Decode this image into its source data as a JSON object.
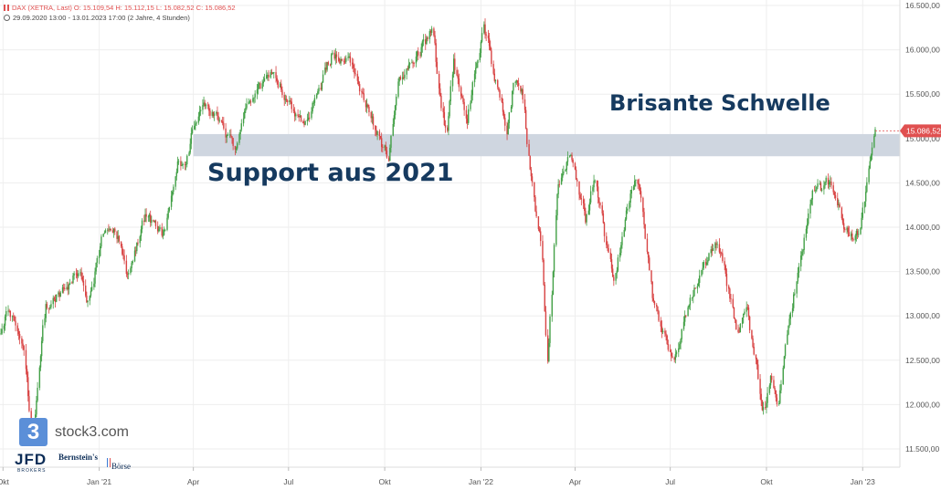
{
  "header": {
    "line1": "DAX (XETRA, Last)  O: 15.109,54  H: 15.112,15  L: 15.082,52  C: 15.086,52",
    "line2": "29.09.2020 13:00 - 13.01.2023 17:00  (2 Jahre, 4 Stunden)"
  },
  "annotations": {
    "support": "Support aus 2021",
    "schwelle": "Brisante Schwelle"
  },
  "logos": {
    "stock3_mark": "3",
    "stock3": "stock3.com",
    "jfd": "JFD",
    "jfd_sub": "BROKERS",
    "bernstein": "Bernstein's",
    "boerse": "Börse"
  },
  "colors": {
    "up": "#43a047",
    "down": "#d84343",
    "band": "#cfd6e0",
    "last_price": "#e05050",
    "annotation": "#163a5f"
  },
  "chart_data": {
    "type": "candlestick",
    "title": "DAX (XETRA, Last)",
    "period": "29.09.2020 13:00 - 13.01.2023 17:00",
    "ohlc_last": {
      "open": 15109.54,
      "high": 15112.15,
      "low": 15082.52,
      "close": 15086.52
    },
    "last_price_label": "15.086,52",
    "y_axis": {
      "side": "right",
      "ylim": [
        11400,
        16550
      ],
      "ticks": [
        11500,
        12000,
        12500,
        13000,
        13500,
        14000,
        14500,
        15000,
        15500,
        16000,
        16500
      ],
      "tick_labels": [
        "11.500,00",
        "12.000,00",
        "12.500,00",
        "13.000,00",
        "13.500,00",
        "14.000,00",
        "14.500,00",
        "15.000,00",
        "15.500,00",
        "16.000,00",
        "16.500,00"
      ]
    },
    "x_axis": {
      "start": "2020-09-29",
      "end": "2023-01-13",
      "ticks": [
        {
          "date": "2020-10-01",
          "label": "Okt"
        },
        {
          "date": "2021-01-01",
          "label": "Jan '21"
        },
        {
          "date": "2021-04-01",
          "label": "Apr"
        },
        {
          "date": "2021-07-01",
          "label": "Jul"
        },
        {
          "date": "2021-10-01",
          "label": "Okt"
        },
        {
          "date": "2022-01-01",
          "label": "Jan '22"
        },
        {
          "date": "2022-04-01",
          "label": "Apr"
        },
        {
          "date": "2022-07-01",
          "label": "Jul"
        },
        {
          "date": "2022-10-01",
          "label": "Okt"
        },
        {
          "date": "2023-01-01",
          "label": "Jan '23"
        }
      ]
    },
    "support_zone": {
      "from": "2021-04-01",
      "low": 14800,
      "high": 15050
    },
    "grid": true,
    "path": [
      {
        "date": "2020-09-29",
        "value": 12800
      },
      {
        "date": "2020-10-08",
        "value": 13100
      },
      {
        "date": "2020-10-15",
        "value": 12900
      },
      {
        "date": "2020-10-22",
        "value": 12700
      },
      {
        "date": "2020-10-28",
        "value": 11900
      },
      {
        "date": "2020-10-30",
        "value": 11550
      },
      {
        "date": "2020-11-06",
        "value": 12450
      },
      {
        "date": "2020-11-12",
        "value": 13100
      },
      {
        "date": "2020-12-01",
        "value": 13300
      },
      {
        "date": "2020-12-15",
        "value": 13500
      },
      {
        "date": "2020-12-21",
        "value": 13100
      },
      {
        "date": "2021-01-08",
        "value": 14000
      },
      {
        "date": "2021-01-20",
        "value": 13900
      },
      {
        "date": "2021-01-29",
        "value": 13450
      },
      {
        "date": "2021-02-15",
        "value": 14100
      },
      {
        "date": "2021-03-05",
        "value": 13900
      },
      {
        "date": "2021-03-18",
        "value": 14700
      },
      {
        "date": "2021-03-25",
        "value": 14600
      },
      {
        "date": "2021-04-01",
        "value": 15100
      },
      {
        "date": "2021-04-16",
        "value": 15400
      },
      {
        "date": "2021-05-12",
        "value": 14850
      },
      {
        "date": "2021-05-20",
        "value": 15300
      },
      {
        "date": "2021-06-15",
        "value": 15750
      },
      {
        "date": "2021-07-08",
        "value": 15300
      },
      {
        "date": "2021-07-19",
        "value": 15200
      },
      {
        "date": "2021-08-13",
        "value": 15950
      },
      {
        "date": "2021-09-03",
        "value": 15800
      },
      {
        "date": "2021-09-20",
        "value": 15200
      },
      {
        "date": "2021-10-01",
        "value": 14900
      },
      {
        "date": "2021-10-06",
        "value": 14820
      },
      {
        "date": "2021-10-15",
        "value": 15600
      },
      {
        "date": "2021-11-03",
        "value": 15950
      },
      {
        "date": "2021-11-17",
        "value": 16250
      },
      {
        "date": "2021-11-26",
        "value": 15250
      },
      {
        "date": "2021-12-01",
        "value": 15050
      },
      {
        "date": "2021-12-07",
        "value": 15850
      },
      {
        "date": "2021-12-20",
        "value": 15250
      },
      {
        "date": "2022-01-05",
        "value": 16280
      },
      {
        "date": "2022-01-14",
        "value": 15800
      },
      {
        "date": "2022-01-27",
        "value": 15100
      },
      {
        "date": "2022-02-02",
        "value": 15600
      },
      {
        "date": "2022-02-10",
        "value": 15550
      },
      {
        "date": "2022-02-24",
        "value": 14150
      },
      {
        "date": "2022-03-01",
        "value": 13800
      },
      {
        "date": "2022-03-07",
        "value": 12450
      },
      {
        "date": "2022-03-16",
        "value": 14400
      },
      {
        "date": "2022-03-29",
        "value": 14850
      },
      {
        "date": "2022-04-12",
        "value": 14050
      },
      {
        "date": "2022-04-21",
        "value": 14550
      },
      {
        "date": "2022-05-09",
        "value": 13400
      },
      {
        "date": "2022-05-30",
        "value": 14600
      },
      {
        "date": "2022-06-03",
        "value": 14450
      },
      {
        "date": "2022-06-16",
        "value": 13150
      },
      {
        "date": "2022-07-05",
        "value": 12450
      },
      {
        "date": "2022-07-29",
        "value": 13450
      },
      {
        "date": "2022-08-16",
        "value": 13900
      },
      {
        "date": "2022-09-06",
        "value": 12750
      },
      {
        "date": "2022-09-13",
        "value": 13200
      },
      {
        "date": "2022-09-29",
        "value": 11900
      },
      {
        "date": "2022-10-07",
        "value": 12300
      },
      {
        "date": "2022-10-13",
        "value": 12000
      },
      {
        "date": "2022-10-28",
        "value": 13200
      },
      {
        "date": "2022-11-15",
        "value": 14350
      },
      {
        "date": "2022-12-01",
        "value": 14500
      },
      {
        "date": "2022-12-20",
        "value": 13900
      },
      {
        "date": "2022-12-29",
        "value": 13900
      },
      {
        "date": "2023-01-05",
        "value": 14450
      },
      {
        "date": "2023-01-13",
        "value": 15086.52
      }
    ]
  }
}
